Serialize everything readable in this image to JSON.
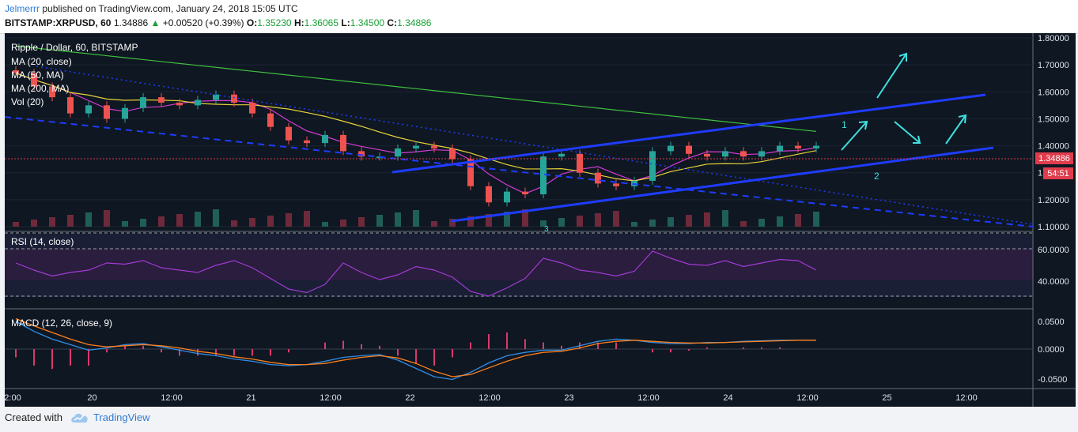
{
  "header": {
    "author": "Jelmerrr",
    "published": "published on TradingView.com, January 24, 2018 15:05 UTC",
    "symbol": "BITSTAMP:XRPUSD, 60",
    "last": "1.34886",
    "change": "+0.00520 (+0.39%)",
    "o_label": "O:",
    "o": "1.35230",
    "h_label": "H:",
    "h": "1.36065",
    "l_label": "L:",
    "l": "1.34500",
    "c_label": "C:",
    "c": "1.34886"
  },
  "footer": {
    "created_with": "Created with",
    "brand": "TradingView"
  },
  "colors": {
    "background": "#0f1722",
    "candle_up": "#26a69a",
    "candle_down": "#ef5350",
    "ma20": "#d63bd6",
    "ma50": "#e8d23a",
    "ma200": "#3fbf3f",
    "trend": "#1f3cff",
    "arrow": "#3ee0e0",
    "rsi": "#a23ad6",
    "macd": "#2f8fe8",
    "signal": "#ff7f1a",
    "price_tag": "#e03c4c"
  },
  "chart_data": {
    "type": "candlestick",
    "title": "Ripple / Dollar, 60, BITSTAMP",
    "legend": [
      "MA (20, close)",
      "MA (50, MA)",
      "MA (200, MA)",
      "Vol (20)"
    ],
    "price_axis": {
      "ticks": [
        "1.80000",
        "1.70000",
        "1.60000",
        "1.50000",
        "1.40000",
        "1.30000",
        "1.20000",
        "1.10000"
      ],
      "ylim": [
        1.1,
        1.8
      ]
    },
    "price_label": "1.34886",
    "countdown": "54:51",
    "x_axis": {
      "ticks": [
        "2:00",
        "20",
        "12:00",
        "21",
        "12:00",
        "22",
        "12:00",
        "23",
        "12:00",
        "24",
        "12:00",
        "25",
        "12:00"
      ]
    },
    "close_trend": [
      1.67,
      1.62,
      1.58,
      1.52,
      1.55,
      1.5,
      1.54,
      1.58,
      1.56,
      1.55,
      1.57,
      1.59,
      1.56,
      1.52,
      1.47,
      1.42,
      1.41,
      1.44,
      1.38,
      1.36,
      1.36,
      1.39,
      1.4,
      1.39,
      1.35,
      1.25,
      1.19,
      1.23,
      1.22,
      1.36,
      1.37,
      1.3,
      1.26,
      1.25,
      1.27,
      1.38,
      1.4,
      1.37,
      1.36,
      1.38,
      1.36,
      1.38,
      1.4,
      1.39,
      1.4
    ],
    "annotations": [
      "1",
      "2",
      "3"
    ],
    "rsi": {
      "label": "RSI (14, close)",
      "ticks": [
        "60.0000",
        "40.0000"
      ],
      "ylim": [
        20,
        80
      ],
      "upper_band": 70,
      "lower_band": 30,
      "values": [
        58,
        52,
        47,
        50,
        52,
        58,
        57,
        60,
        54,
        52,
        50,
        56,
        60,
        54,
        45,
        36,
        33,
        40,
        58,
        50,
        44,
        48,
        55,
        52,
        46,
        34,
        30,
        37,
        45,
        62,
        58,
        52,
        50,
        47,
        51,
        68,
        62,
        57,
        56,
        60,
        55,
        58,
        61,
        60,
        52
      ]
    },
    "macd": {
      "label": "MACD (12, 26, close, 9)",
      "ticks": [
        "0.0500",
        "0.0000",
        "-0.0500"
      ],
      "ylim": [
        -0.065,
        0.06
      ],
      "macd_values": [
        0.05,
        0.032,
        0.018,
        0.008,
        -0.002,
        0.002,
        0.008,
        0.01,
        0.004,
        -0.002,
        -0.008,
        -0.012,
        -0.018,
        -0.022,
        -0.028,
        -0.03,
        -0.028,
        -0.022,
        -0.015,
        -0.012,
        -0.01,
        -0.02,
        -0.035,
        -0.05,
        -0.055,
        -0.042,
        -0.025,
        -0.012,
        -0.006,
        -0.002,
        -0.002,
        0.006,
        0.014,
        0.018,
        0.016,
        0.012,
        0.01,
        0.01,
        0.012,
        0.012,
        0.014,
        0.015,
        0.016,
        0.016,
        0.016
      ],
      "signal_values": [
        0.055,
        0.042,
        0.03,
        0.018,
        0.008,
        0.004,
        0.006,
        0.008,
        0.006,
        0.002,
        -0.004,
        -0.008,
        -0.014,
        -0.018,
        -0.024,
        -0.028,
        -0.028,
        -0.026,
        -0.02,
        -0.015,
        -0.012,
        -0.016,
        -0.026,
        -0.04,
        -0.05,
        -0.046,
        -0.034,
        -0.022,
        -0.012,
        -0.006,
        -0.004,
        0.002,
        0.01,
        0.014,
        0.016,
        0.014,
        0.012,
        0.011,
        0.011,
        0.012,
        0.013,
        0.014,
        0.015,
        0.016,
        0.016
      ]
    }
  }
}
